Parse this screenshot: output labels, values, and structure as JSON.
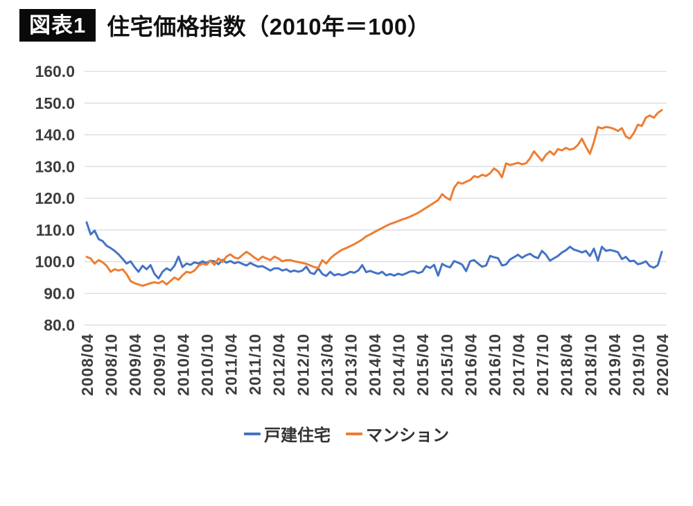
{
  "header": {
    "badge": "図表1",
    "title": "住宅価格指数（2010年＝100）"
  },
  "chart_data": {
    "type": "line",
    "title": "住宅価格指数（2010年＝100）",
    "grid": "horizontal",
    "legend_position": "bottom",
    "ylim": [
      80,
      160
    ],
    "y_tick_labels": [
      "160.0",
      "150.0",
      "140.0",
      "130.0",
      "120.0",
      "110.0",
      "100.0",
      "90.0",
      "80.0"
    ],
    "x_tick_step": 6,
    "x_tick_labels": [
      "2008/04",
      "2008/10",
      "2009/04",
      "2009/10",
      "2010/04",
      "2010/10",
      "2011/04",
      "2011/10",
      "2012/04",
      "2012/10",
      "2013/04",
      "2013/10",
      "2014/04",
      "2014/10",
      "2015/04",
      "2015/10",
      "2016/04",
      "2016/10",
      "2017/04",
      "2017/10",
      "2018/04",
      "2018/10",
      "2019/04",
      "2019/10",
      "2020/04"
    ],
    "x_start": "2008/04",
    "x_end": "2020/04",
    "x_frequency": "monthly",
    "series": [
      {
        "name": "戸建住宅",
        "color": "#4472C4",
        "values": [
          112.4,
          108.6,
          109.8,
          107.1,
          106.5,
          105.0,
          104.3,
          103.4,
          102.3,
          100.9,
          99.4,
          100.1,
          98.3,
          96.8,
          98.7,
          97.6,
          98.9,
          96.1,
          94.7,
          96.8,
          97.9,
          97.2,
          98.7,
          101.6,
          98.3,
          99.4,
          99.0,
          99.8,
          99.4,
          100.1,
          99.6,
          100.3,
          100.1,
          99.2,
          100.6,
          99.7,
          100.2,
          99.5,
          99.9,
          99.3,
          98.8,
          99.6,
          98.9,
          98.4,
          98.6,
          97.9,
          97.2,
          97.9,
          97.9,
          97.2,
          97.6,
          96.8,
          97.2,
          96.8,
          97.2,
          98.4,
          96.5,
          96.1,
          97.9,
          96.1,
          95.5,
          96.8,
          95.7,
          96.1,
          95.7,
          96.1,
          96.8,
          96.5,
          97.2,
          98.9,
          96.7,
          97.1,
          96.6,
          96.2,
          96.8,
          95.7,
          96.1,
          95.6,
          96.2,
          95.8,
          96.3,
          96.9,
          97.0,
          96.4,
          96.8,
          98.6,
          98.0,
          99.0,
          95.6,
          99.3,
          98.6,
          98.2,
          100.2,
          99.7,
          99.1,
          97.0,
          100.1,
          100.5,
          99.4,
          98.4,
          98.8,
          101.8,
          101.4,
          101.1,
          98.8,
          99.1,
          100.7,
          101.4,
          102.2,
          101.2,
          102.0,
          102.5,
          101.6,
          101.1,
          103.4,
          102.2,
          100.3,
          101.1,
          101.8,
          102.9,
          103.6,
          104.7,
          103.8,
          103.4,
          102.9,
          103.4,
          101.8,
          104.1,
          100.3,
          104.7,
          103.4,
          103.7,
          103.4,
          103.0,
          100.8,
          101.5,
          100.1,
          100.3,
          99.2,
          99.5,
          100.1,
          98.6,
          98.1,
          98.9,
          103.1
        ]
      },
      {
        "name": "マンション",
        "color": "#ED7D31",
        "values": [
          101.5,
          101.0,
          99.4,
          100.5,
          99.8,
          98.7,
          96.8,
          97.6,
          97.2,
          97.6,
          96.1,
          93.9,
          93.2,
          92.8,
          92.4,
          92.8,
          93.2,
          93.5,
          93.2,
          93.9,
          92.8,
          93.9,
          95.0,
          94.3,
          95.7,
          96.8,
          96.5,
          97.2,
          98.7,
          99.4,
          99.0,
          100.3,
          99.0,
          101.0,
          99.9,
          101.6,
          102.3,
          101.3,
          101.0,
          102.1,
          103.1,
          102.3,
          101.3,
          100.5,
          101.6,
          101.0,
          100.5,
          101.6,
          101.0,
          100.1,
          100.5,
          100.5,
          100.1,
          99.9,
          99.6,
          99.3,
          98.8,
          98.3,
          98.0,
          100.5,
          99.4,
          101.0,
          102.1,
          103.0,
          103.8,
          104.3,
          104.9,
          105.5,
          106.2,
          107.0,
          108.0,
          108.6,
          109.3,
          110.0,
          110.6,
          111.3,
          111.9,
          112.3,
          112.8,
          113.3,
          113.7,
          114.2,
          114.8,
          115.4,
          116.2,
          117.0,
          117.8,
          118.6,
          119.4,
          121.3,
          120.2,
          119.5,
          123.3,
          125.0,
          124.6,
          125.2,
          125.7,
          127.0,
          126.6,
          127.4,
          127.0,
          127.9,
          129.4,
          128.5,
          126.6,
          131.0,
          130.5,
          130.8,
          131.2,
          130.7,
          131.0,
          132.6,
          134.8,
          133.3,
          131.8,
          133.7,
          134.8,
          133.7,
          135.5,
          135.1,
          135.9,
          135.3,
          135.7,
          136.8,
          138.8,
          136.2,
          134.0,
          137.7,
          142.5,
          142.0,
          142.5,
          142.3,
          141.9,
          141.2,
          142.1,
          139.5,
          138.8,
          140.6,
          143.2,
          142.8,
          145.4,
          146.1,
          145.4,
          146.9,
          147.8
        ]
      }
    ]
  },
  "colors": {
    "grid": "#D9D9D9",
    "axis_text": "#3D3D3D",
    "badge_bg": "#0A0A0A",
    "badge_text": "#FFFFFF",
    "background": "#FFFFFF"
  }
}
